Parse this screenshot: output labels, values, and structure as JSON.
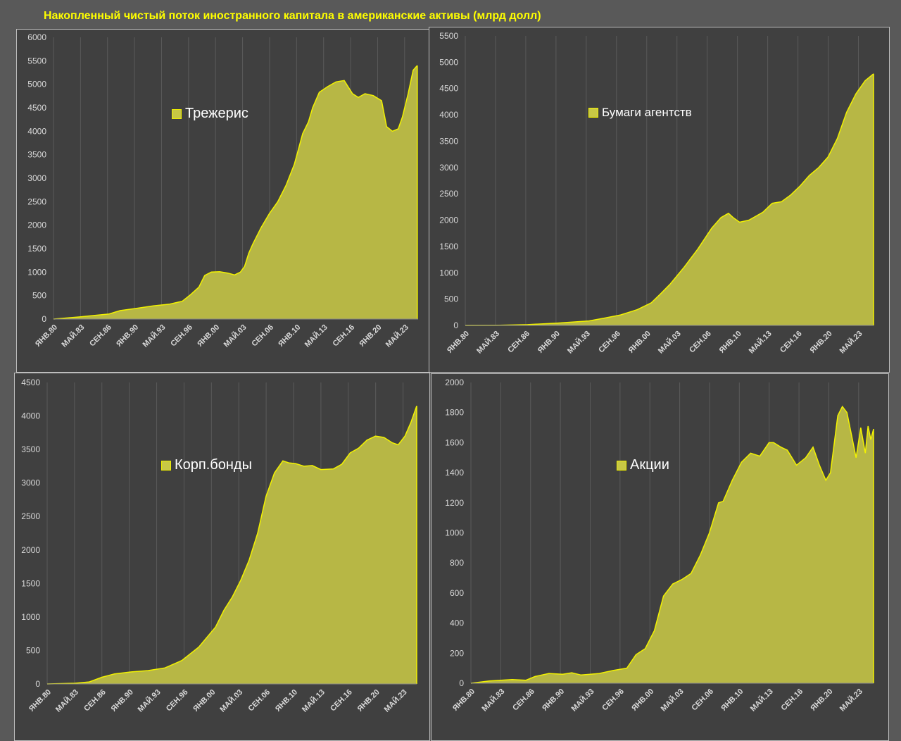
{
  "title": "Накопленный чистый поток иностранного капитала в американские активы (млрд долл)",
  "colors": {
    "fill": "#b7b745",
    "line": "#f2f200",
    "grid": "#5a5a5a",
    "axis_text": "#d9d9d9",
    "title": "#ffff00",
    "panel_bg": "#404040"
  },
  "chart_data": [
    {
      "type": "area",
      "legend": "Трежерис",
      "legend_position": "center-left",
      "x_tick_labels": [
        "ЯНВ.80",
        "МАЙ.83",
        "СЕН.86",
        "ЯНВ.90",
        "МАЙ.93",
        "СЕН.96",
        "ЯНВ.00",
        "МАЙ.03",
        "СЕН.06",
        "ЯНВ.10",
        "МАЙ.13",
        "СЕН.16",
        "ЯНВ.20",
        "МАЙ.23"
      ],
      "x_range": [
        1980.0,
        2023.9
      ],
      "ylim": [
        0,
        6000
      ],
      "y_ticks": [
        0,
        500,
        1000,
        1500,
        2000,
        2500,
        3000,
        3500,
        4000,
        4500,
        5000,
        5500,
        6000
      ],
      "grid": "vertical",
      "x": [
        1980,
        1983.3,
        1986.7,
        1988,
        1990,
        1992,
        1994,
        1995.5,
        1996.5,
        1997.5,
        1998.2,
        1999,
        2000,
        2001,
        2001.8,
        2002.5,
        2003,
        2003.5,
        2004,
        2005,
        2006,
        2007,
        2008,
        2009,
        2010,
        2010.7,
        2011.2,
        2012,
        2013,
        2014,
        2015,
        2016,
        2016.7,
        2017.5,
        2018.5,
        2019.5,
        2020.1,
        2020.8,
        2021.5,
        2022,
        2022.7,
        2023.3,
        2023.8
      ],
      "values": [
        0,
        50,
        110,
        180,
        230,
        280,
        320,
        380,
        520,
        680,
        930,
        1000,
        1010,
        980,
        940,
        1000,
        1120,
        1400,
        1600,
        1950,
        2250,
        2500,
        2850,
        3300,
        3950,
        4200,
        4500,
        4830,
        4950,
        5050,
        5080,
        4800,
        4720,
        4800,
        4760,
        4650,
        4100,
        4000,
        4050,
        4300,
        4800,
        5300,
        5400
      ]
    },
    {
      "type": "area",
      "legend": "Бумаги агентств",
      "legend_position": "center-left",
      "x_tick_labels": [
        "ЯНВ.80",
        "МАЙ.83",
        "СЕН.86",
        "ЯНВ.90",
        "МАЙ.93",
        "СЕН.96",
        "ЯНВ.00",
        "МАЙ.03",
        "СЕН.06",
        "ЯНВ.10",
        "МАЙ.13",
        "СЕН.16",
        "ЯНВ.20",
        "МАЙ.23"
      ],
      "x_range": [
        1980.0,
        2023.9
      ],
      "ylim": [
        0,
        5500
      ],
      "y_ticks": [
        0,
        500,
        1000,
        1500,
        2000,
        2500,
        3000,
        3500,
        4000,
        4500,
        5000,
        5500
      ],
      "grid": "vertical",
      "x": [
        1980,
        1983.3,
        1986.7,
        1990,
        1993.3,
        1995,
        1996.7,
        1998.5,
        2000,
        2001,
        2002,
        2003.5,
        2005,
        2006.5,
        2007.5,
        2008.3,
        2008.8,
        2009.5,
        2010.5,
        2012,
        2013,
        2014,
        2015,
        2016,
        2017,
        2018,
        2019,
        2020,
        2021,
        2022,
        2023,
        2023.9
      ],
      "values": [
        0,
        2,
        15,
        45,
        85,
        140,
        200,
        300,
        430,
        600,
        780,
        1100,
        1450,
        1850,
        2050,
        2130,
        2050,
        1960,
        2000,
        2150,
        2320,
        2350,
        2480,
        2650,
        2850,
        3000,
        3200,
        3550,
        4050,
        4400,
        4650,
        4780
      ]
    },
    {
      "type": "area",
      "legend": "Корп.бонды",
      "legend_position": "center-left",
      "x_tick_labels": [
        "ЯНВ.80",
        "МАЙ.83",
        "СЕН.86",
        "ЯНВ.90",
        "МАЙ.93",
        "СЕН.96",
        "ЯНВ.00",
        "МАЙ.03",
        "СЕН.06",
        "ЯНВ.10",
        "МАЙ.13",
        "СЕН.16",
        "ЯНВ.20",
        "МАЙ.23"
      ],
      "x_range": [
        1980.0,
        2023.9
      ],
      "ylim": [
        0,
        4500
      ],
      "y_ticks": [
        0,
        500,
        1000,
        1500,
        2000,
        2500,
        3000,
        3500,
        4000,
        4500
      ],
      "grid": "vertical",
      "x": [
        1980,
        1983.3,
        1985,
        1986.5,
        1988,
        1990,
        1992,
        1994,
        1996,
        1998,
        2000,
        2001,
        2002,
        2003,
        2004,
        2005,
        2006,
        2007,
        2008,
        2008.7,
        2009.5,
        2010.5,
        2011.5,
        2012.5,
        2014,
        2015,
        2016,
        2017,
        2018,
        2019,
        2020,
        2021,
        2021.7,
        2022.5,
        2023.2,
        2023.9
      ],
      "values": [
        0,
        10,
        30,
        100,
        150,
        180,
        200,
        240,
        350,
        550,
        850,
        1100,
        1300,
        1550,
        1850,
        2250,
        2800,
        3150,
        3330,
        3300,
        3290,
        3250,
        3260,
        3200,
        3210,
        3280,
        3450,
        3520,
        3640,
        3700,
        3680,
        3600,
        3570,
        3700,
        3900,
        4150
      ]
    },
    {
      "type": "area",
      "legend": "Акции",
      "legend_position": "center-left",
      "x_tick_labels": [
        "ЯНВ.80",
        "МАЙ.83",
        "СЕН.86",
        "ЯНВ.90",
        "МАЙ.93",
        "СЕН.96",
        "ЯНВ.00",
        "МАЙ.03",
        "СЕН.06",
        "ЯНВ.10",
        "МАЙ.13",
        "СЕН.16",
        "ЯНВ.20",
        "МАЙ.23"
      ],
      "x_range": [
        1980.0,
        2023.9
      ],
      "ylim": [
        0,
        2000
      ],
      "y_ticks": [
        0,
        200,
        400,
        600,
        800,
        1000,
        1200,
        1400,
        1600,
        1800,
        2000
      ],
      "grid": "vertical",
      "x": [
        1980,
        1982,
        1984.5,
        1986,
        1987,
        1988.5,
        1990,
        1991,
        1992,
        1993,
        1994,
        1995.5,
        1997,
        1998,
        1999,
        2000,
        2001,
        2002,
        2003,
        2004,
        2005,
        2006,
        2007,
        2007.5,
        2008.5,
        2009.5,
        2010.5,
        2011.5,
        2012.5,
        2013,
        2013.8,
        2014.5,
        2015.5,
        2016.5,
        2017.3,
        2018,
        2018.7,
        2019.2,
        2020,
        2020.5,
        2021,
        2021.5,
        2022,
        2022.5,
        2023,
        2023.3,
        2023.6,
        2023.9
      ],
      "values": [
        0,
        15,
        25,
        20,
        45,
        65,
        60,
        70,
        55,
        60,
        65,
        85,
        100,
        190,
        230,
        350,
        580,
        660,
        690,
        730,
        850,
        1000,
        1200,
        1210,
        1350,
        1470,
        1530,
        1510,
        1600,
        1600,
        1570,
        1550,
        1450,
        1500,
        1570,
        1450,
        1350,
        1400,
        1780,
        1840,
        1800,
        1650,
        1500,
        1700,
        1530,
        1710,
        1620,
        1690
      ]
    }
  ]
}
